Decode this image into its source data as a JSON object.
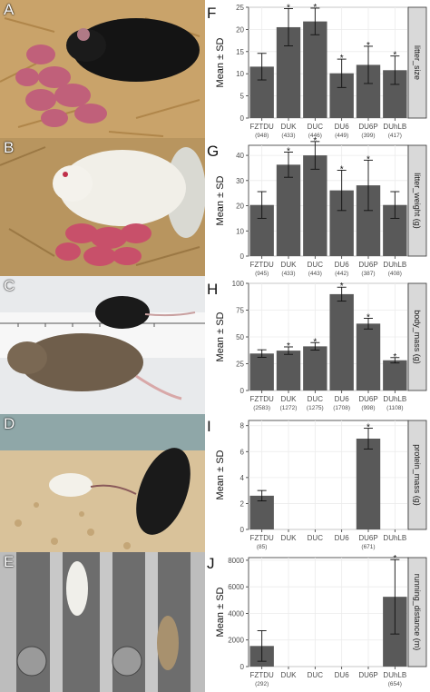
{
  "photo_panels": [
    {
      "letter": "A",
      "subject": "black mouse nursing litter of pink pups on straw bedding"
    },
    {
      "letter": "B",
      "subject": "white mouse with large pink litter"
    },
    {
      "letter": "C",
      "subject": "small black mouse and large brown mouse on ruler"
    },
    {
      "letter": "D",
      "subject": "white mouse and black mouse in cage"
    },
    {
      "letter": "E",
      "subject": "mice in running wheels"
    }
  ],
  "chart_data": [
    {
      "type": "bar",
      "letter": "F",
      "facet_label": "litter_size",
      "ylabel": "Mean ± SD",
      "ylim": [
        0,
        25
      ],
      "yticks": [
        0,
        5,
        10,
        15,
        20,
        25
      ],
      "categories": [
        "FZTDU",
        "DUK",
        "DUC",
        "DU6",
        "DU6P",
        "DUhLB"
      ],
      "counts": [
        "(948)",
        "(433)",
        "(446)",
        "(449)",
        "(399)",
        "(417)"
      ],
      "values": [
        11.6,
        20.5,
        21.8,
        10.1,
        12.0,
        10.8
      ],
      "sd": [
        3.0,
        4.2,
        3.0,
        3.2,
        4.2,
        3.2
      ],
      "significant": [
        false,
        true,
        true,
        true,
        true,
        true
      ],
      "marker": "*"
    },
    {
      "type": "bar",
      "letter": "G",
      "facet_label": "litter_weight (g)",
      "ylabel": "Mean ± SD",
      "ylim": [
        0,
        44
      ],
      "yticks": [
        0,
        10,
        20,
        30,
        40
      ],
      "categories": [
        "FZTDU",
        "DUK",
        "DUC",
        "DU6",
        "DU6P",
        "DUhLB"
      ],
      "counts": [
        "(945)",
        "(433)",
        "(443)",
        "(442)",
        "(387)",
        "(408)"
      ],
      "values": [
        20.3,
        36.3,
        40.0,
        26.1,
        28.1,
        20.3
      ],
      "sd": [
        5.3,
        5.0,
        5.5,
        8.0,
        10.0,
        5.3
      ],
      "significant": [
        false,
        true,
        true,
        true,
        true,
        false
      ],
      "marker": "*"
    },
    {
      "type": "bar",
      "letter": "H",
      "facet_label": "body_mass (g)",
      "ylabel": "Mean ± SD",
      "ylim": [
        0,
        100
      ],
      "yticks": [
        0,
        25,
        50,
        75,
        100
      ],
      "categories": [
        "FZTDU",
        "DUK",
        "DUC",
        "DU6",
        "DU6P",
        "DUhLB"
      ],
      "counts": [
        "(2583)",
        "(1272)",
        "(1275)",
        "(1708)",
        "(998)",
        "(1108)"
      ],
      "values": [
        34.5,
        37.2,
        41.2,
        89.9,
        62.4,
        28.2
      ],
      "sd": [
        3.5,
        3.5,
        3.5,
        6.5,
        5.0,
        2.5
      ],
      "significant": [
        false,
        true,
        true,
        true,
        true,
        true
      ],
      "marker": "*"
    },
    {
      "type": "bar",
      "letter": "I",
      "facet_label": "protein_mass (g)",
      "ylabel": "Mean ± SD",
      "ylim": [
        0,
        8.4
      ],
      "yticks": [
        0,
        2,
        4,
        6,
        8
      ],
      "categories": [
        "FZTDU",
        "DUK",
        "DUC",
        "DU6",
        "DU6P",
        "DUhLB"
      ],
      "counts": [
        "(85)",
        "",
        "",
        "",
        "(671)",
        ""
      ],
      "values": [
        2.6,
        null,
        null,
        null,
        7.0,
        null
      ],
      "sd": [
        0.4,
        null,
        null,
        null,
        0.8,
        null
      ],
      "significant": [
        false,
        false,
        false,
        false,
        true,
        false
      ],
      "marker": "*"
    },
    {
      "type": "bar",
      "letter": "J",
      "facet_label": "running_distance (m)",
      "ylabel": "Mean ± SD",
      "ylim": [
        0,
        8200
      ],
      "yticks": [
        0,
        2000,
        4000,
        6000,
        8000
      ],
      "categories": [
        "FZTDU",
        "DUK",
        "DUC",
        "DU6",
        "DU6P",
        "DUhLB"
      ],
      "counts": [
        "(292)",
        "",
        "",
        "",
        "",
        "(654)"
      ],
      "values": [
        1550,
        null,
        null,
        null,
        null,
        5250
      ],
      "sd": [
        1150,
        null,
        null,
        null,
        null,
        2800
      ],
      "significant": [
        false,
        false,
        false,
        false,
        false,
        true
      ],
      "marker": "*"
    }
  ],
  "colors": {
    "bar": "#595959",
    "panel_bg": "#ffffff",
    "grid": "#ebebeb",
    "strip": "#d9d9d9",
    "axis": "#333333"
  }
}
